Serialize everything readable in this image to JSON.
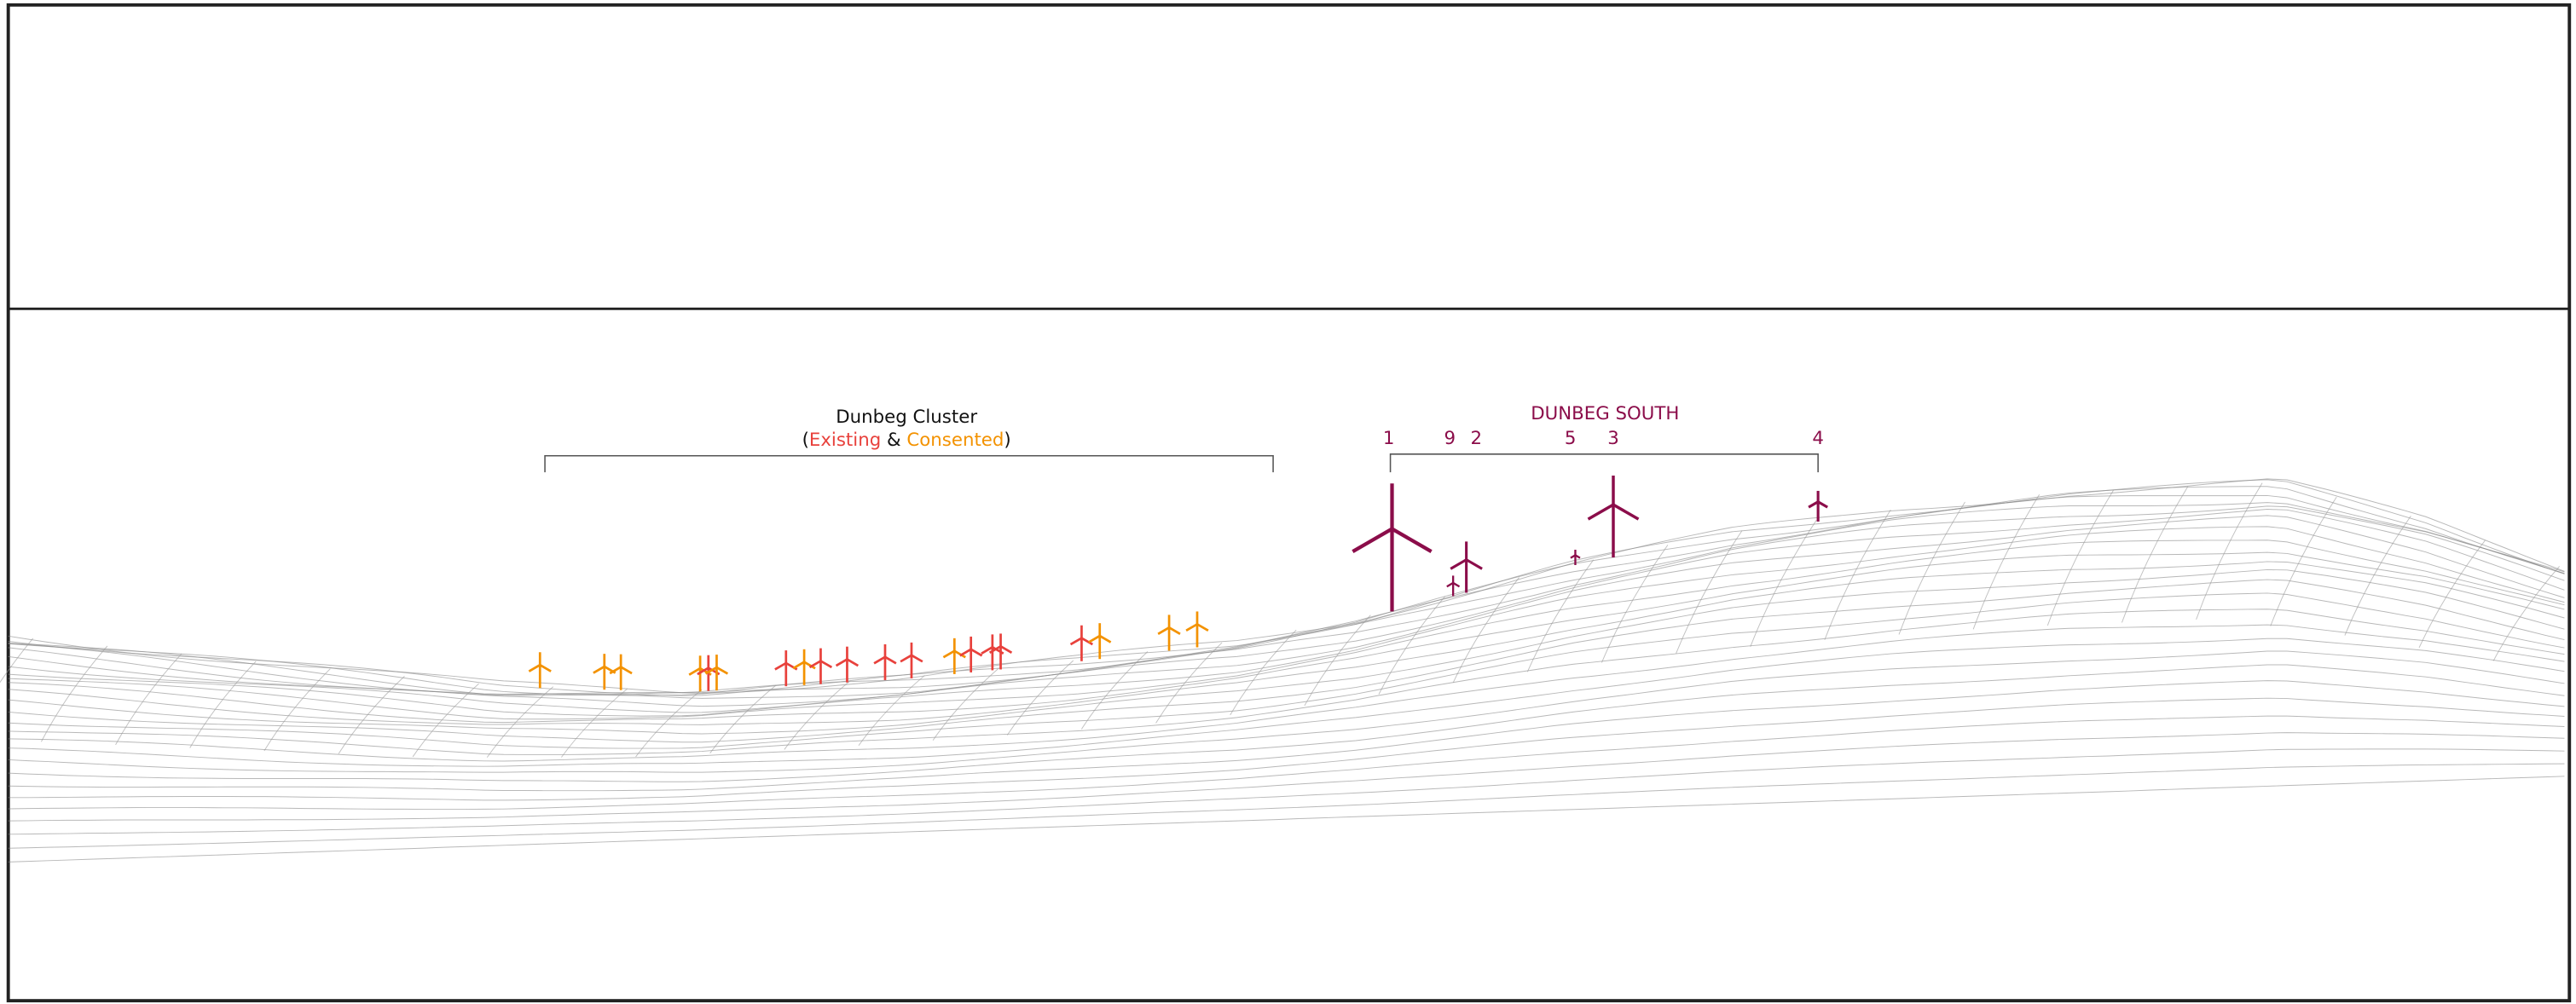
{
  "cluster": {
    "title": "Dunbeg Cluster",
    "open": "(",
    "existing": "Existing",
    "and": "&",
    "consented": "Consented",
    "close": ")"
  },
  "south": {
    "title": "DUNBEG SOUTH",
    "turbines": [
      "1",
      "9",
      "2",
      "5",
      "3",
      "4"
    ]
  }
}
